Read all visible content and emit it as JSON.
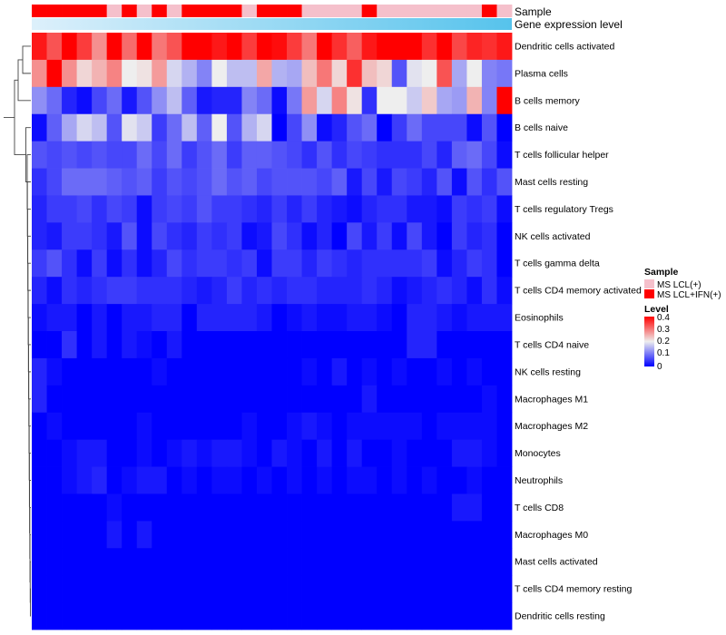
{
  "chart_data": {
    "type": "heatmap",
    "title": "",
    "rows": [
      "Dendritic cells activated",
      "Plasma cells",
      "B cells memory",
      "B cells naive",
      "T cells follicular helper",
      "Mast cells resting",
      "T cells regulatory  Tregs",
      "NK cells activated",
      "T cells gamma delta",
      "T cells CD4 memory activated",
      "Eosinophils",
      "T cells CD4 naive",
      "NK cells resting",
      "Macrophages M1",
      "Macrophages M2",
      "Monocytes",
      "Neutrophils",
      "T cells CD8",
      "Macrophages M0",
      "Mast cells activated",
      "T cells CD4 memory resting",
      "Dendritic cells resting"
    ],
    "annotation_tracks": [
      {
        "name": "Sample",
        "values": [
          "MS LCL+IFN(+)",
          "MS LCL+IFN(+)",
          "MS LCL+IFN(+)",
          "MS LCL+IFN(+)",
          "MS LCL+IFN(+)",
          "MS LCL(+)",
          "MS LCL+IFN(+)",
          "MS LCL(+)",
          "MS LCL+IFN(+)",
          "MS LCL(+)",
          "MS LCL+IFN(+)",
          "MS LCL+IFN(+)",
          "MS LCL+IFN(+)",
          "MS LCL+IFN(+)",
          "MS LCL(+)",
          "MS LCL+IFN(+)",
          "MS LCL+IFN(+)",
          "MS LCL+IFN(+)",
          "MS LCL(+)",
          "MS LCL(+)",
          "MS LCL(+)",
          "MS LCL(+)",
          "MS LCL+IFN(+)",
          "MS LCL(+)",
          "MS LCL(+)",
          "MS LCL(+)",
          "MS LCL(+)",
          "MS LCL(+)",
          "MS LCL(+)",
          "MS LCL(+)",
          "MS LCL+IFN(+)",
          "MS LCL(+)"
        ]
      },
      {
        "name": "Gene expression level",
        "gradient": [
          "#ddf0fb",
          "#56c3ec"
        ]
      }
    ],
    "values": [
      [
        0.38,
        0.33,
        0.42,
        0.35,
        0.28,
        0.42,
        0.31,
        0.4,
        0.3,
        0.33,
        0.4,
        0.41,
        0.38,
        0.41,
        0.35,
        0.42,
        0.39,
        0.35,
        0.3,
        0.4,
        0.36,
        0.32,
        0.38,
        0.41,
        0.42,
        0.41,
        0.36,
        0.4,
        0.34,
        0.37,
        0.36,
        0.38
      ],
      [
        0.28,
        0.42,
        0.28,
        0.22,
        0.25,
        0.29,
        0.2,
        0.21,
        0.27,
        0.18,
        0.15,
        0.11,
        0.2,
        0.16,
        0.16,
        0.26,
        0.15,
        0.14,
        0.24,
        0.3,
        0.22,
        0.36,
        0.24,
        0.22,
        0.07,
        0.19,
        0.2,
        0.33,
        0.14,
        0.2,
        0.11,
        0.1
      ],
      [
        0.12,
        0.09,
        0.03,
        0.01,
        0.06,
        0.09,
        0.02,
        0.07,
        0.12,
        0.16,
        0.08,
        0.02,
        0.03,
        0.03,
        0.11,
        0.09,
        0.01,
        0.1,
        0.27,
        0.18,
        0.29,
        0.21,
        0.04,
        0.2,
        0.2,
        0.17,
        0.23,
        0.14,
        0.13,
        0.25,
        0.11,
        0.42
      ],
      [
        0.01,
        0.08,
        0.14,
        0.18,
        0.16,
        0.07,
        0.19,
        0.17,
        0.05,
        0.09,
        0.16,
        0.08,
        0.2,
        0.07,
        0.15,
        0.18,
        0.0,
        0.06,
        0.12,
        0.01,
        0.03,
        0.07,
        0.09,
        0.0,
        0.05,
        0.09,
        0.06,
        0.06,
        0.06,
        0.01,
        0.07,
        0.0
      ],
      [
        0.07,
        0.06,
        0.07,
        0.06,
        0.07,
        0.06,
        0.06,
        0.09,
        0.06,
        0.09,
        0.05,
        0.07,
        0.09,
        0.05,
        0.08,
        0.08,
        0.07,
        0.06,
        0.04,
        0.07,
        0.04,
        0.06,
        0.05,
        0.04,
        0.04,
        0.04,
        0.06,
        0.03,
        0.08,
        0.09,
        0.06,
        0.01
      ],
      [
        0.04,
        0.06,
        0.09,
        0.09,
        0.09,
        0.08,
        0.07,
        0.08,
        0.05,
        0.07,
        0.06,
        0.07,
        0.09,
        0.07,
        0.08,
        0.06,
        0.07,
        0.07,
        0.07,
        0.06,
        0.08,
        0.02,
        0.06,
        0.02,
        0.06,
        0.05,
        0.03,
        0.07,
        0.01,
        0.07,
        0.04,
        0.07
      ],
      [
        0.03,
        0.05,
        0.05,
        0.06,
        0.04,
        0.06,
        0.05,
        0.01,
        0.05,
        0.06,
        0.05,
        0.07,
        0.05,
        0.05,
        0.04,
        0.03,
        0.05,
        0.03,
        0.05,
        0.03,
        0.02,
        0.01,
        0.03,
        0.04,
        0.04,
        0.02,
        0.02,
        0.01,
        0.05,
        0.04,
        0.05,
        0.01
      ],
      [
        0.03,
        0.02,
        0.05,
        0.05,
        0.04,
        0.02,
        0.07,
        0.01,
        0.06,
        0.04,
        0.03,
        0.05,
        0.04,
        0.05,
        0.01,
        0.02,
        0.06,
        0.04,
        0.01,
        0.03,
        0.0,
        0.06,
        0.02,
        0.05,
        0.01,
        0.06,
        0.02,
        0.0,
        0.05,
        0.03,
        0.04,
        0.0
      ],
      [
        0.05,
        0.07,
        0.04,
        0.01,
        0.05,
        0.01,
        0.04,
        0.01,
        0.03,
        0.06,
        0.04,
        0.05,
        0.05,
        0.04,
        0.05,
        0.01,
        0.05,
        0.05,
        0.03,
        0.05,
        0.04,
        0.03,
        0.04,
        0.04,
        0.04,
        0.04,
        0.05,
        0.01,
        0.03,
        0.05,
        0.04,
        0.0
      ],
      [
        0.03,
        0.01,
        0.04,
        0.03,
        0.04,
        0.05,
        0.05,
        0.04,
        0.04,
        0.04,
        0.03,
        0.02,
        0.03,
        0.05,
        0.03,
        0.04,
        0.03,
        0.04,
        0.04,
        0.03,
        0.03,
        0.03,
        0.04,
        0.03,
        0.01,
        0.02,
        0.03,
        0.04,
        0.03,
        0.01,
        0.04,
        0.01
      ],
      [
        0.01,
        0.02,
        0.02,
        0.0,
        0.02,
        0.0,
        0.02,
        0.02,
        0.03,
        0.03,
        0.0,
        0.03,
        0.03,
        0.03,
        0.03,
        0.02,
        0.0,
        0.01,
        0.02,
        0.01,
        0.01,
        0.02,
        0.02,
        0.01,
        0.0,
        0.03,
        0.03,
        0.02,
        0.01,
        0.02,
        0.02,
        0.02
      ],
      [
        0.0,
        0.0,
        0.04,
        0.0,
        0.02,
        0.0,
        0.02,
        0.01,
        0.0,
        0.02,
        0.0,
        0.0,
        0.0,
        0.0,
        0.0,
        0.0,
        0.0,
        0.0,
        0.0,
        0.0,
        0.0,
        0.0,
        0.0,
        0.0,
        0.0,
        0.03,
        0.03,
        0.0,
        0.0,
        0.0,
        0.0,
        0.0
      ],
      [
        0.03,
        0.01,
        0.0,
        0.0,
        0.0,
        0.0,
        0.0,
        0.0,
        0.01,
        0.0,
        0.0,
        0.0,
        0.0,
        0.0,
        0.0,
        0.0,
        0.0,
        0.0,
        0.01,
        0.0,
        0.02,
        0.0,
        0.01,
        0.0,
        0.01,
        0.0,
        0.0,
        0.01,
        0.0,
        0.01,
        0.0,
        0.0
      ],
      [
        0.03,
        0.0,
        0.0,
        0.0,
        0.0,
        0.0,
        0.0,
        0.0,
        0.0,
        0.0,
        0.0,
        0.0,
        0.0,
        0.0,
        0.0,
        0.0,
        0.0,
        0.0,
        0.0,
        0.0,
        0.0,
        0.0,
        0.02,
        0.0,
        0.0,
        0.0,
        0.0,
        0.0,
        0.0,
        0.0,
        0.01,
        0.0
      ],
      [
        0.0,
        0.01,
        0.0,
        0.0,
        0.0,
        0.0,
        0.0,
        0.01,
        0.0,
        0.0,
        0.0,
        0.0,
        0.0,
        0.0,
        0.01,
        0.0,
        0.0,
        0.01,
        0.02,
        0.01,
        0.0,
        0.01,
        0.01,
        0.01,
        0.01,
        0.01,
        0.0,
        0.01,
        0.01,
        0.01,
        0.01,
        0.0
      ],
      [
        0.0,
        0.0,
        0.01,
        0.02,
        0.02,
        0.0,
        0.0,
        0.01,
        0.0,
        0.01,
        0.02,
        0.01,
        0.02,
        0.02,
        0.01,
        0.0,
        0.02,
        0.01,
        0.0,
        0.02,
        0.0,
        0.02,
        0.0,
        0.0,
        0.01,
        0.0,
        0.0,
        0.0,
        0.02,
        0.02,
        0.01,
        0.0
      ],
      [
        0.0,
        0.0,
        0.01,
        0.02,
        0.03,
        0.0,
        0.01,
        0.02,
        0.02,
        0.0,
        0.01,
        0.0,
        0.01,
        0.01,
        0.0,
        0.01,
        0.0,
        0.01,
        0.0,
        0.01,
        0.0,
        0.01,
        0.01,
        0.0,
        0.01,
        0.0,
        0.01,
        0.0,
        0.0,
        0.01,
        0.0,
        0.0
      ],
      [
        0.0,
        0.0,
        0.0,
        0.0,
        0.0,
        0.01,
        0.0,
        0.0,
        0.0,
        0.0,
        0.0,
        0.0,
        0.0,
        0.0,
        0.0,
        0.0,
        0.0,
        0.0,
        0.0,
        0.0,
        0.0,
        0.0,
        0.0,
        0.0,
        0.0,
        0.0,
        0.0,
        0.0,
        0.02,
        0.02,
        0.0,
        0.0
      ],
      [
        0.0,
        0.0,
        0.0,
        0.0,
        0.0,
        0.02,
        0.0,
        0.02,
        0.0,
        0.0,
        0.0,
        0.0,
        0.0,
        0.0,
        0.0,
        0.0,
        0.0,
        0.0,
        0.0,
        0.0,
        0.0,
        0.0,
        0.0,
        0.0,
        0.0,
        0.0,
        0.0,
        0.0,
        0.0,
        0.0,
        0.0,
        0.0
      ],
      [
        0.0,
        0.0,
        0.0,
        0.0,
        0.0,
        0.0,
        0.0,
        0.0,
        0.0,
        0.0,
        0.0,
        0.0,
        0.0,
        0.0,
        0.0,
        0.0,
        0.0,
        0.0,
        0.0,
        0.0,
        0.0,
        0.0,
        0.0,
        0.0,
        0.0,
        0.0,
        0.0,
        0.0,
        0.0,
        0.0,
        0.0,
        0.0
      ],
      [
        0.0,
        0.0,
        0.0,
        0.0,
        0.0,
        0.0,
        0.0,
        0.0,
        0.0,
        0.0,
        0.0,
        0.0,
        0.0,
        0.0,
        0.0,
        0.0,
        0.0,
        0.0,
        0.0,
        0.0,
        0.0,
        0.0,
        0.0,
        0.0,
        0.0,
        0.0,
        0.0,
        0.0,
        0.0,
        0.0,
        0.0,
        0.0
      ],
      [
        0.0,
        0.0,
        0.0,
        0.0,
        0.0,
        0.0,
        0.0,
        0.0,
        0.0,
        0.0,
        0.0,
        0.0,
        0.0,
        0.0,
        0.0,
        0.0,
        0.0,
        0.0,
        0.0,
        0.0,
        0.0,
        0.0,
        0.0,
        0.0,
        0.0,
        0.0,
        0.0,
        0.0,
        0.0,
        0.0,
        0.0,
        0.0
      ]
    ],
    "color_scale": {
      "stops": [
        0,
        0.2,
        0.4
      ],
      "colors": [
        "#0000ff",
        "#eeeeee",
        "#ff0000"
      ]
    },
    "legends": [
      {
        "title": "Sample",
        "entries": [
          {
            "label": "MS LCL(+)",
            "color": "#f5c0cb"
          },
          {
            "label": "MS LCL+IFN(+)",
            "color": "#ff0000"
          }
        ]
      },
      {
        "title": "Level",
        "ticks": [
          "0.4",
          "0.3",
          "0.2",
          "0.1",
          "0"
        ]
      }
    ],
    "dendrogram": "row"
  }
}
